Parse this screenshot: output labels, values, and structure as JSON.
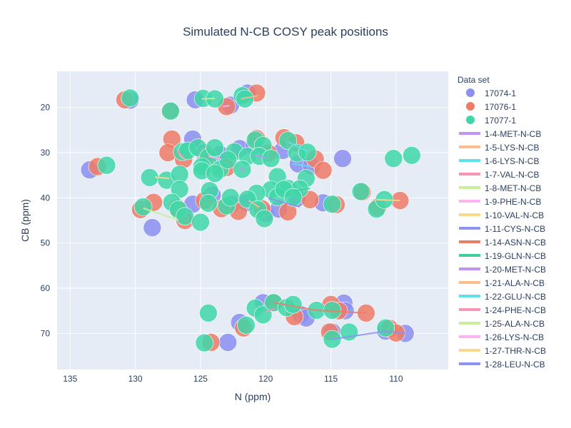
{
  "chart_data": {
    "type": "scatter",
    "title": "Simulated N-CB COSY peak positions",
    "xlabel": "N (ppm)",
    "ylabel": "CB (ppm)",
    "xlim": [
      136,
      106
    ],
    "ylim": [
      78,
      12
    ],
    "x_reversed": true,
    "y_reversed": true,
    "x_ticks": [
      135,
      130,
      125,
      120,
      115,
      110
    ],
    "y_ticks": [
      20,
      30,
      40,
      50,
      60,
      70
    ],
    "grid": true,
    "legend": {
      "title": "Data set",
      "placement": "right",
      "marker_entries": [
        {
          "name": "17074-1",
          "color": "#8c8ff0"
        },
        {
          "name": "17076-1",
          "color": "#ee7b66"
        },
        {
          "name": "17077-1",
          "color": "#3fd7a8"
        }
      ],
      "line_entries": [
        {
          "name": "1-4-MET-N-CB",
          "color": "#c193f5"
        },
        {
          "name": "1-5-LYS-N-CB",
          "color": "#fbbd8c"
        },
        {
          "name": "1-6-LYS-N-CB",
          "color": "#5ee1ef"
        },
        {
          "name": "1-7-VAL-N-CB",
          "color": "#f895b5"
        },
        {
          "name": "1-8-MET-N-CB",
          "color": "#c9ef9d"
        },
        {
          "name": "1-9-PHE-N-CB",
          "color": "#fdb3f0"
        },
        {
          "name": "1-10-VAL-N-CB",
          "color": "#fdd88a"
        },
        {
          "name": "1-11-CYS-N-CB",
          "color": "#8c93f0"
        },
        {
          "name": "1-14-ASN-N-CB",
          "color": "#ee7b66"
        },
        {
          "name": "1-19-GLN-N-CB",
          "color": "#3fcf9e"
        },
        {
          "name": "1-20-MET-N-CB",
          "color": "#c193f5"
        },
        {
          "name": "1-21-ALA-N-CB",
          "color": "#fbbd8c"
        },
        {
          "name": "1-22-GLU-N-CB",
          "color": "#5ee1ef"
        },
        {
          "name": "1-24-PHE-N-CB",
          "color": "#f895b5"
        },
        {
          "name": "1-25-ALA-N-CB",
          "color": "#c9ef9d"
        },
        {
          "name": "1-26-LYS-N-CB",
          "color": "#fdb3f0"
        },
        {
          "name": "1-27-THR-N-CB",
          "color": "#fdd88a"
        },
        {
          "name": "1-28-LEU-N-CB",
          "color": "#8c93f0"
        }
      ]
    },
    "series": [
      {
        "name": "17074-1",
        "points": [
          [
            130.4,
            18.4
          ],
          [
            125.4,
            18.3
          ],
          [
            122.7,
            19.5
          ],
          [
            121.4,
            16.8
          ],
          [
            133.5,
            33.8
          ],
          [
            125.6,
            27.0
          ],
          [
            124.7,
            30.1
          ],
          [
            123.5,
            30.4
          ],
          [
            122.0,
            29.1
          ],
          [
            120.9,
            28.6
          ],
          [
            118.7,
            29.5
          ],
          [
            117.5,
            32.5
          ],
          [
            116.5,
            33.0
          ],
          [
            128.7,
            46.6
          ],
          [
            125.6,
            41.4
          ],
          [
            124.1,
            39.4
          ],
          [
            122.6,
            41.4
          ],
          [
            121.5,
            41.1
          ],
          [
            120.0,
            43.5
          ],
          [
            119.0,
            42.5
          ],
          [
            117.6,
            40.1
          ],
          [
            114.1,
            31.3
          ],
          [
            115.6,
            41.1
          ],
          [
            122.0,
            67.6
          ],
          [
            120.2,
            63.2
          ],
          [
            117.3,
            65.9
          ],
          [
            116.9,
            66.6
          ],
          [
            114.9,
            69.7
          ],
          [
            114.0,
            63.3
          ],
          [
            113.9,
            65.0
          ],
          [
            122.9,
            72.0
          ],
          [
            110.8,
            69.5
          ],
          [
            109.3,
            70.0
          ]
        ]
      },
      {
        "name": "17076-1",
        "points": [
          [
            130.8,
            18.3
          ],
          [
            127.3,
            20.7
          ],
          [
            123.0,
            19.8
          ],
          [
            120.7,
            16.8
          ],
          [
            132.9,
            33.1
          ],
          [
            127.2,
            27.0
          ],
          [
            127.5,
            30.0
          ],
          [
            126.3,
            31.5
          ],
          [
            124.5,
            30.6
          ],
          [
            123.0,
            33.3
          ],
          [
            120.7,
            26.9
          ],
          [
            119.8,
            30.1
          ],
          [
            118.6,
            26.7
          ],
          [
            117.7,
            27.8
          ],
          [
            116.2,
            31.4
          ],
          [
            115.6,
            33.9
          ],
          [
            129.6,
            42.6
          ],
          [
            128.6,
            41.0
          ],
          [
            126.8,
            42.2
          ],
          [
            126.2,
            45.0
          ],
          [
            124.7,
            40.6
          ],
          [
            123.4,
            42.4
          ],
          [
            122.1,
            43.0
          ],
          [
            120.3,
            42.4
          ],
          [
            118.3,
            43.1
          ],
          [
            116.6,
            40.4
          ],
          [
            114.6,
            41.5
          ],
          [
            112.6,
            38.7
          ],
          [
            111.4,
            42.1
          ],
          [
            109.7,
            40.6
          ],
          [
            121.7,
            68.8
          ],
          [
            119.4,
            63.2
          ],
          [
            117.8,
            66.3
          ],
          [
            115.0,
            63.6
          ],
          [
            114.4,
            65.0
          ],
          [
            112.3,
            65.5
          ],
          [
            115.1,
            69.7
          ],
          [
            110.5,
            68.9
          ],
          [
            110.0,
            69.9
          ],
          [
            124.2,
            72.0
          ]
        ]
      },
      {
        "name": "17077-1",
        "points": [
          [
            130.4,
            17.9
          ],
          [
            127.3,
            20.8
          ],
          [
            124.8,
            18.0
          ],
          [
            123.9,
            18.1
          ],
          [
            121.8,
            17.4
          ],
          [
            121.6,
            18.1
          ],
          [
            132.2,
            32.8
          ],
          [
            126.4,
            29.8
          ],
          [
            126.0,
            29.6
          ],
          [
            125.2,
            28.9
          ],
          [
            124.4,
            31.0
          ],
          [
            124.9,
            33.1
          ],
          [
            123.5,
            33.7
          ],
          [
            123.9,
            28.9
          ],
          [
            122.4,
            29.8
          ],
          [
            122.9,
            31.6
          ],
          [
            121.4,
            30.8
          ],
          [
            121.8,
            33.7
          ],
          [
            120.8,
            27.2
          ],
          [
            120.2,
            28.4
          ],
          [
            120.5,
            30.8
          ],
          [
            119.6,
            31.3
          ],
          [
            119.1,
            35.3
          ],
          [
            118.3,
            27.3
          ],
          [
            117.6,
            30.1
          ],
          [
            116.8,
            29.9
          ],
          [
            116.9,
            35.7
          ],
          [
            118.3,
            37.9
          ],
          [
            117.4,
            38.0
          ],
          [
            119.6,
            38.2
          ],
          [
            120.7,
            39.0
          ],
          [
            128.9,
            35.5
          ],
          [
            127.6,
            36.1
          ],
          [
            126.6,
            34.8
          ],
          [
            126.6,
            38.1
          ],
          [
            124.9,
            34.0
          ],
          [
            123.9,
            34.6
          ],
          [
            124.3,
            38.4
          ],
          [
            129.4,
            42.0
          ],
          [
            127.2,
            41.0
          ],
          [
            126.7,
            42.6
          ],
          [
            126.2,
            44.1
          ],
          [
            125.0,
            45.4
          ],
          [
            124.4,
            41.2
          ],
          [
            123.0,
            41.8
          ],
          [
            122.7,
            39.9
          ],
          [
            121.4,
            40.3
          ],
          [
            120.6,
            42.6
          ],
          [
            120.1,
            44.6
          ],
          [
            119.1,
            39.8
          ],
          [
            118.6,
            38.1
          ],
          [
            117.9,
            39.9
          ],
          [
            114.9,
            41.4
          ],
          [
            112.7,
            38.6
          ],
          [
            111.5,
            42.5
          ],
          [
            110.9,
            40.4
          ],
          [
            108.8,
            30.6
          ],
          [
            110.2,
            31.3
          ],
          [
            124.4,
            65.5
          ],
          [
            121.5,
            68.2
          ],
          [
            120.8,
            64.4
          ],
          [
            120.2,
            65.9
          ],
          [
            119.4,
            63.2
          ],
          [
            118.4,
            64.3
          ],
          [
            117.9,
            63.6
          ],
          [
            116.1,
            64.9
          ],
          [
            114.9,
            64.9
          ],
          [
            113.6,
            69.7
          ],
          [
            114.9,
            71.3
          ],
          [
            124.7,
            72.1
          ],
          [
            110.8,
            68.8
          ]
        ]
      }
    ],
    "traces": [
      {
        "name": "1-28-LEU-N-CB",
        "points": [
          [
            114.9,
            71.3
          ],
          [
            110.8,
            69.5
          ],
          [
            109.3,
            70.0
          ]
        ]
      },
      {
        "name": "1-14-ASN-N-CB",
        "points": [
          [
            119.4,
            63.2
          ],
          [
            116.1,
            64.9
          ],
          [
            112.3,
            65.5
          ]
        ]
      },
      {
        "name": "1-10-VAL-N-CB",
        "points": [
          [
            111.5,
            40.4
          ],
          [
            109.7,
            40.6
          ]
        ]
      },
      {
        "name": "1-11-CYS-N-CB",
        "points": [
          [
            119.8,
            40.1
          ],
          [
            117.4,
            42.0
          ]
        ]
      },
      {
        "name": "1-19-GLN-N-CB",
        "points": [
          [
            117.8,
            38.5
          ],
          [
            116.6,
            37.9
          ]
        ]
      },
      {
        "name": "1-25-ALA-N-CB",
        "points": [
          [
            129.4,
            42.3
          ],
          [
            126.7,
            44.9
          ]
        ]
      },
      {
        "name": "1-27-THR-N-CB",
        "points": [
          [
            128.5,
            35.4
          ],
          [
            127.4,
            35.7
          ]
        ]
      },
      {
        "name": "1-7-VAL-N-CB",
        "points": [
          [
            126.8,
            29.5
          ],
          [
            126.2,
            31.4
          ]
        ]
      },
      {
        "name": "1-6-LYS-N-CB",
        "points": [
          [
            118.3,
            27.6
          ],
          [
            116.8,
            29.7
          ]
        ]
      },
      {
        "name": "1-22-GLU-N-CB",
        "points": [
          [
            117.9,
            32.5
          ],
          [
            116.5,
            33.1
          ]
        ]
      },
      {
        "name": "1-5-LYS-N-CB",
        "points": [
          [
            121.9,
            18.1
          ],
          [
            120.6,
            17.4
          ]
        ]
      },
      {
        "name": "1-26-LYS-N-CB",
        "points": [
          [
            122.8,
            19.6
          ],
          [
            123.3,
            19.8
          ]
        ]
      },
      {
        "name": "1-8-MET-N-CB",
        "points": [
          [
            124.9,
            18.1
          ],
          [
            123.9,
            18.0
          ]
        ]
      },
      {
        "name": "1-9-PHE-N-CB",
        "points": [
          [
            124.4,
            30.8
          ],
          [
            123.4,
            31.5
          ]
        ]
      },
      {
        "name": "1-4-MET-N-CB",
        "points": [
          [
            120.9,
            30.6
          ],
          [
            119.9,
            31.2
          ]
        ]
      },
      {
        "name": "1-20-MET-N-CB",
        "points": [
          [
            122.0,
            33.5
          ],
          [
            121.6,
            34.1
          ]
        ]
      },
      {
        "name": "1-21-ALA-N-CB",
        "points": [
          [
            121.3,
            40.6
          ],
          [
            120.5,
            42.1
          ]
        ]
      },
      {
        "name": "1-24-PHE-N-CB",
        "points": [
          [
            120.0,
            65.2
          ],
          [
            119.3,
            64.5
          ]
        ]
      }
    ]
  }
}
